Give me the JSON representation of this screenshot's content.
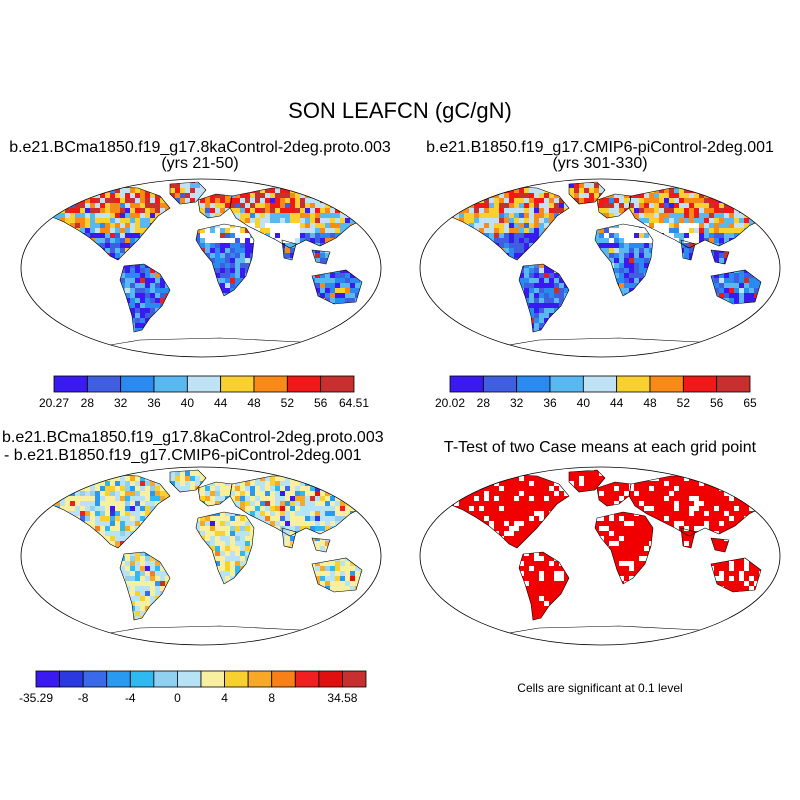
{
  "title": "SON LEAFCN (gC/gN)",
  "panels": [
    {
      "title_line1": "b.e21.BCma1850.f19_g17.8kaControl-2deg.proto.003",
      "title_line2": "(yrs 21-50)",
      "colorbar": {
        "colors": [
          "#3a1af0",
          "#3f5fe0",
          "#2a8af0",
          "#5ab8f0",
          "#c0e2f5",
          "#f8d030",
          "#f88a18",
          "#f01818",
          "#c83030"
        ],
        "labels": [
          "20.27",
          "28",
          "32",
          "36",
          "40",
          "44",
          "48",
          "52",
          "56",
          "64.51"
        ]
      }
    },
    {
      "title_line1": "b.e21.B1850.f19_g17.CMIP6-piControl-2deg.001",
      "title_line2": "(yrs 301-330)",
      "colorbar": {
        "colors": [
          "#3a1af0",
          "#3f5fe0",
          "#2a8af0",
          "#5ab8f0",
          "#c0e2f5",
          "#f8d030",
          "#f88a18",
          "#f01818",
          "#c83030"
        ],
        "labels": [
          "20.02",
          "28",
          "32",
          "36",
          "40",
          "44",
          "48",
          "52",
          "56",
          "65"
        ]
      }
    },
    {
      "title_line1": "b.e21.BCma1850.f19_g17.8kaControl-2deg.proto.003",
      "title_line2": "- b.e21.B1850.f19_g17.CMIP6-piControl-2deg.001",
      "colorbar": {
        "colors": [
          "#3a1af0",
          "#2a3ae0",
          "#3a6ae8",
          "#2a9af0",
          "#30b8f0",
          "#90d0f0",
          "#b8e2f5",
          "#f8f0a0",
          "#f8d030",
          "#f8a828",
          "#f88018",
          "#f02020",
          "#e01010",
          "#c83030"
        ],
        "labels": [
          "-35.29",
          "",
          "-8",
          "",
          "-4",
          "",
          "0",
          "",
          "4",
          "",
          "8",
          "",
          "",
          "34.58"
        ]
      }
    },
    {
      "title_line1": "T-Test of two Case means at each grid point",
      "note": "Cells are significant at 0.1 level"
    }
  ]
}
